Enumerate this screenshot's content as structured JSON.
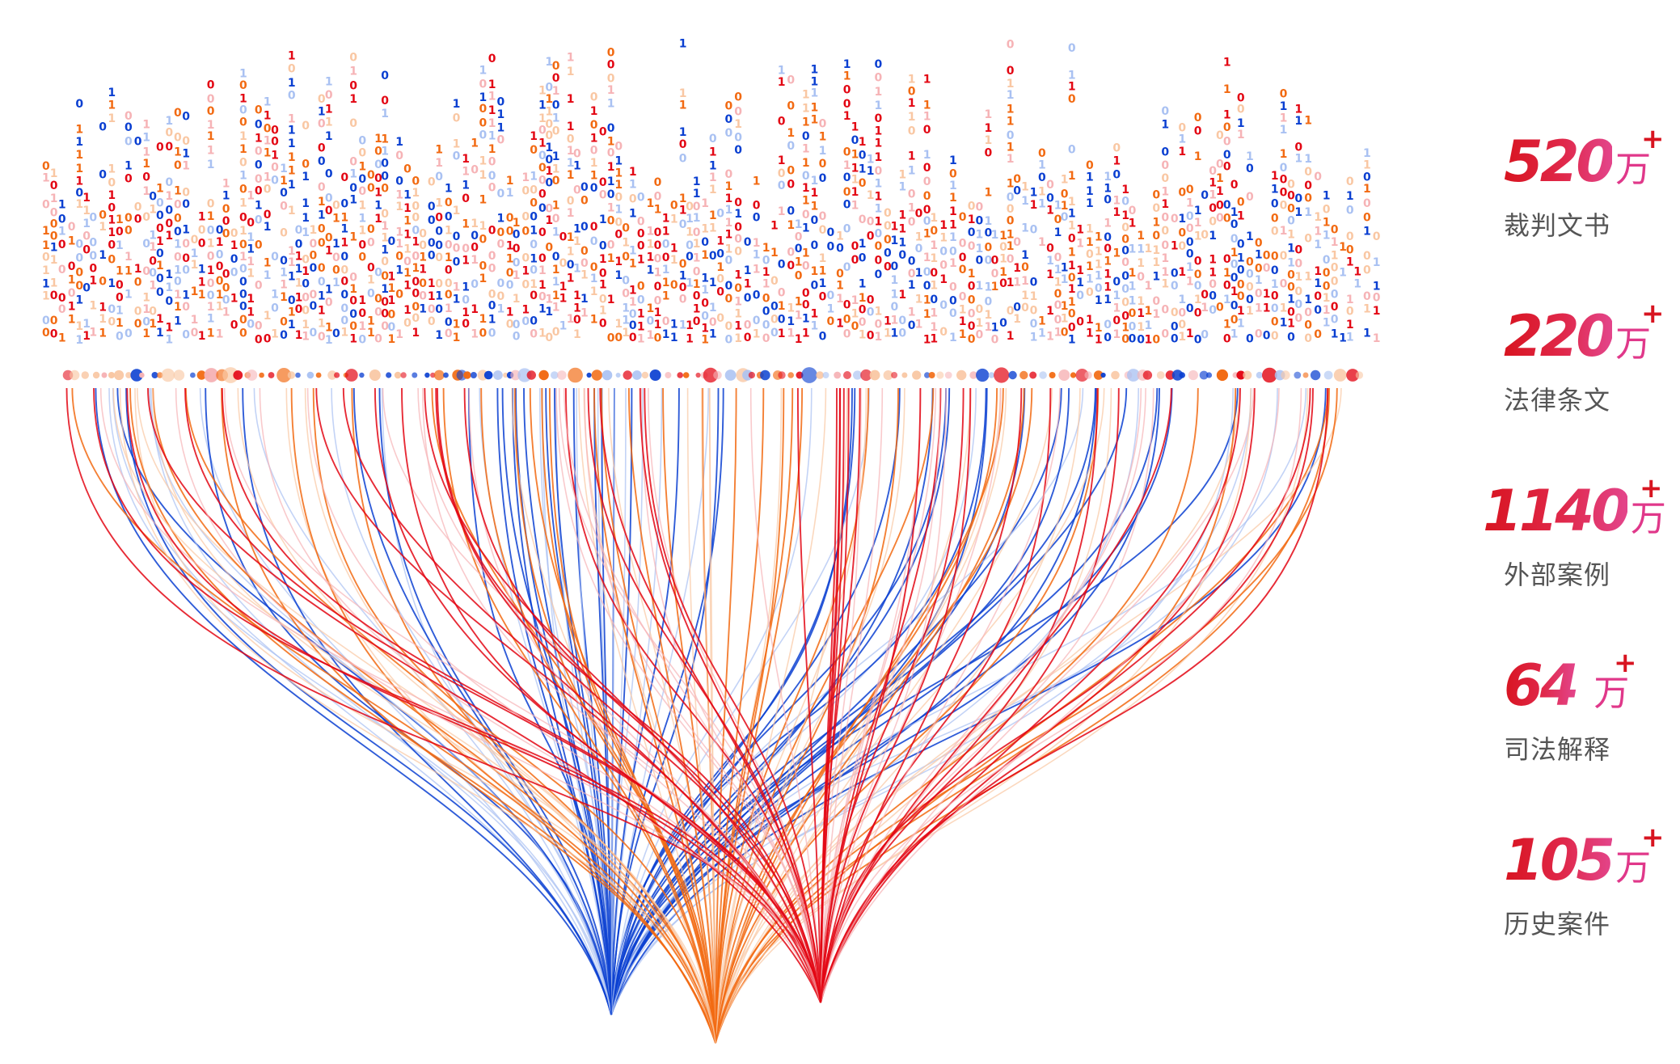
{
  "stats": [
    {
      "number": "520",
      "plus": "+",
      "unit": "万",
      "label": "裁判文书"
    },
    {
      "number": "220",
      "plus": "+",
      "unit": "万",
      "label": "法律条文"
    },
    {
      "number": "1140",
      "plus": "+",
      "unit": "万",
      "label": "外部案例"
    },
    {
      "number": "64",
      "plus": "+",
      "unit": "万",
      "label": "司法解释"
    },
    {
      "number": "105",
      "plus": "+",
      "unit": "万",
      "label": "历史案件"
    }
  ],
  "colors": {
    "blue": "#0a3fd1",
    "orange": "#f26a12",
    "red": "#e30613",
    "light_blue": "#a9c1f2",
    "light_red": "#f6b3b6",
    "light_orange": "#f9c7a3",
    "pink_accent": "#e0388a"
  },
  "visual": {
    "binary_digits": [
      "0",
      "1"
    ],
    "stream_groups": [
      "blue",
      "orange",
      "red"
    ]
  }
}
